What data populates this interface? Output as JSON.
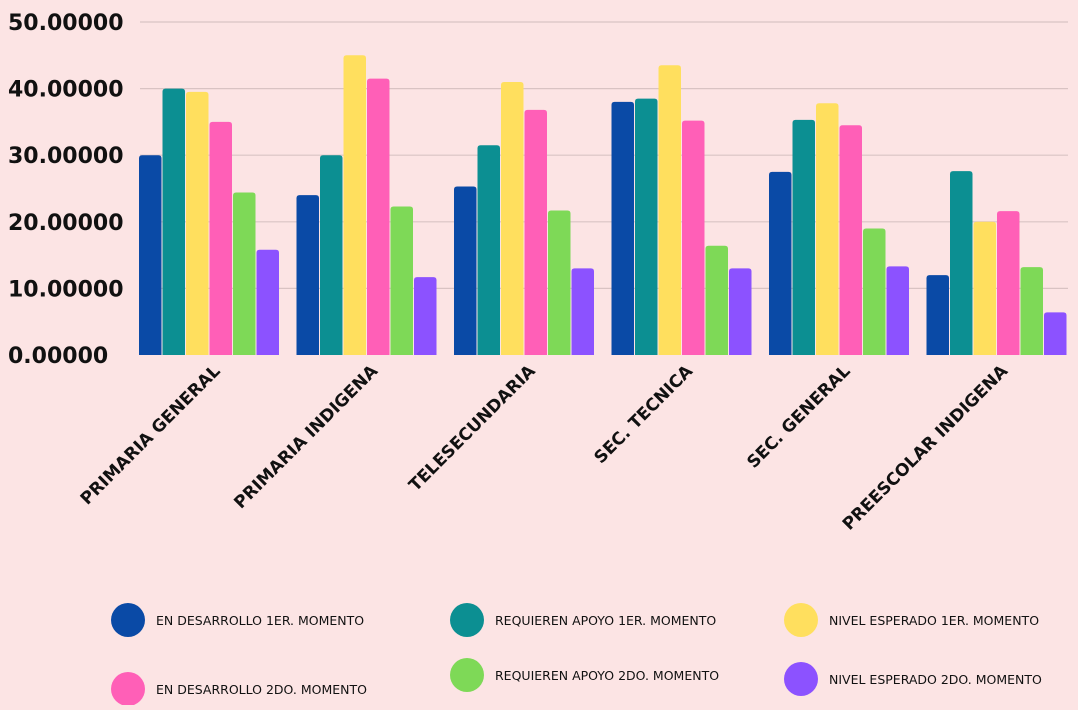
{
  "chart_data": {
    "type": "bar",
    "title": "",
    "xlabel": "",
    "ylabel": "",
    "ylim": [
      0,
      50
    ],
    "yticks": [
      0,
      10,
      20,
      30,
      40,
      50
    ],
    "ytick_labels": [
      "0.00000",
      "10.00000",
      "20.00000",
      "30.00000",
      "40.00000",
      "50.00000"
    ],
    "grid": true,
    "legend_position": "bottom",
    "categories": [
      "PRIMARIA GENERAL",
      "PRIMARIA INDIGENA",
      "TELESECUNDARIA",
      "SEC. TECNICA",
      "SEC. GENERAL",
      "PREESCOLAR INDIGENA"
    ],
    "series": [
      {
        "name": "EN DESARROLLO 1ER. MOMENTO",
        "color": "#0a4aa6",
        "values": [
          30,
          24,
          25.3,
          38,
          27.5,
          12
        ]
      },
      {
        "name": "REQUIEREN APOYO 1ER. MOMENTO",
        "color": "#0c8f92",
        "values": [
          40,
          30,
          31.5,
          38.5,
          35.3,
          27.6
        ]
      },
      {
        "name": "NIVEL ESPERADO 1ER. MOMENTO",
        "color": "#ffdf5e",
        "values": [
          39.5,
          45,
          41,
          43.5,
          37.8,
          20
        ]
      },
      {
        "name": "EN DESARROLLO 2DO. MOMENTO",
        "color": "#ff5fb7",
        "values": [
          35,
          41.5,
          36.8,
          35.2,
          34.5,
          21.6
        ]
      },
      {
        "name": "REQUIEREN APOYO 2DO. MOMENTO",
        "color": "#7ed957",
        "values": [
          24.4,
          22.3,
          21.7,
          16.4,
          19,
          13.2
        ]
      },
      {
        "name": "NIVEL ESPERADO 2DO. MOMENTO",
        "color": "#8c52ff",
        "values": [
          15.8,
          11.7,
          13,
          13,
          13.3,
          6.4
        ]
      }
    ]
  },
  "colors": {
    "background": "#fce4e4",
    "gridline": "#d9c3c3",
    "text": "#111111"
  }
}
